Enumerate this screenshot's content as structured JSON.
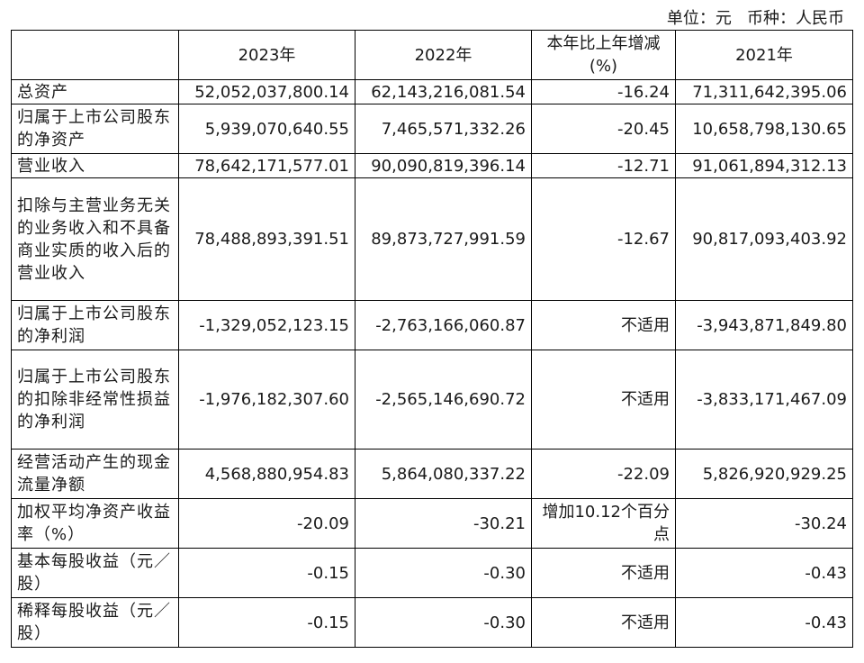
{
  "unit_line": "单位：元   币种：人民币",
  "headers": {
    "blank": "",
    "y2023": "2023年",
    "y2022": "2022年",
    "change": "本年比上年增减(%)",
    "y2021": "2021年"
  },
  "rows": [
    {
      "label": "总资产",
      "y2023": "52,052,037,800.14",
      "y2022": "62,143,216,081.54",
      "change": "-16.24",
      "y2021": "71,311,642,395.06"
    },
    {
      "label": "归属于上市公司股东的净资产",
      "y2023": "5,939,070,640.55",
      "y2022": "7,465,571,332.26",
      "change": "-20.45",
      "y2021": "10,658,798,130.65"
    },
    {
      "label": "营业收入",
      "y2023": "78,642,171,577.01",
      "y2022": "90,090,819,396.14",
      "change": "-12.71",
      "y2021": "91,061,894,312.13"
    },
    {
      "label": "扣除与主营业务无关的业务收入和不具备商业实质的收入后的营业收入",
      "y2023": "78,488,893,391.51",
      "y2022": "89,873,727,991.59",
      "change": "-12.67",
      "y2021": "90,817,093,403.92"
    },
    {
      "label": "归属于上市公司股东的净利润",
      "y2023": "-1,329,052,123.15",
      "y2022": "-2,763,166,060.87",
      "change": "不适用",
      "y2021": "-3,943,871,849.80"
    },
    {
      "label": "归属于上市公司股东的扣除非经常性损益的净利润",
      "y2023": "-1,976,182,307.60",
      "y2022": "-2,565,146,690.72",
      "change": "不适用",
      "y2021": "-3,833,171,467.09"
    },
    {
      "label": "经营活动产生的现金流量净额",
      "y2023": "4,568,880,954.83",
      "y2022": "5,864,080,337.22",
      "change": "-22.09",
      "y2021": "5,826,920,929.25"
    },
    {
      "label": "加权平均净资产收益率（%）",
      "y2023": "-20.09",
      "y2022": "-30.21",
      "change": "增加10.12个百分点",
      "y2021": "-30.24"
    },
    {
      "label": "基本每股收益（元／股）",
      "y2023": "-0.15",
      "y2022": "-0.30",
      "change": "不适用",
      "y2021": "-0.43"
    },
    {
      "label": "稀释每股收益（元／股）",
      "y2023": "-0.15",
      "y2022": "-0.30",
      "change": "不适用",
      "y2021": "-0.43"
    }
  ]
}
